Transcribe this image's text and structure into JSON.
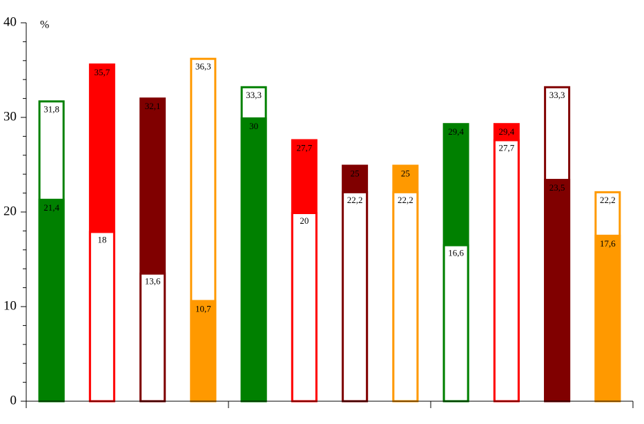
{
  "chart_data": {
    "type": "overlap-bar",
    "y_unit_label": "%",
    "ylim": [
      0,
      40
    ],
    "yticks": [
      0,
      10,
      20,
      30,
      40
    ],
    "yminorticks": [
      2,
      4,
      6,
      8,
      12,
      14,
      16,
      18,
      22,
      24,
      26,
      28,
      32,
      34,
      36,
      38
    ],
    "groups": 3,
    "bars": [
      {
        "color": "#008000",
        "values": [
          21.4,
          31.8
        ],
        "value_labels": [
          "21,4",
          "31,8"
        ],
        "styles": [
          "solid",
          "outline"
        ]
      },
      {
        "color": "#ff0000",
        "values": [
          18,
          35.7
        ],
        "value_labels": [
          "18",
          "35,7"
        ],
        "styles": [
          "outline",
          "solid"
        ]
      },
      {
        "color": "#800000",
        "values": [
          13.6,
          32.1
        ],
        "value_labels": [
          "13,6",
          "32,1"
        ],
        "styles": [
          "outline",
          "solid"
        ]
      },
      {
        "color": "#ff9900",
        "values": [
          10.7,
          36.3
        ],
        "value_labels": [
          "10,7",
          "36,3"
        ],
        "styles": [
          "solid",
          "outline"
        ]
      },
      {
        "color": "#008000",
        "values": [
          30,
          33.3
        ],
        "value_labels": [
          "30",
          "33,3"
        ],
        "styles": [
          "solid",
          "outline"
        ]
      },
      {
        "color": "#ff0000",
        "values": [
          20,
          27.7
        ],
        "value_labels": [
          "20",
          "27,7"
        ],
        "styles": [
          "outline",
          "solid"
        ]
      },
      {
        "color": "#800000",
        "values": [
          22.2,
          25
        ],
        "value_labels": [
          "22,2",
          "25"
        ],
        "styles": [
          "outline",
          "solid"
        ]
      },
      {
        "color": "#ff9900",
        "values": [
          22.2,
          25
        ],
        "value_labels": [
          "22,2",
          "25"
        ],
        "styles": [
          "outline",
          "solid"
        ]
      },
      {
        "color": "#008000",
        "values": [
          16.6,
          29.4
        ],
        "value_labels": [
          "16,6",
          "29,4"
        ],
        "styles": [
          "outline",
          "solid"
        ]
      },
      {
        "color": "#ff0000",
        "values": [
          27.7,
          29.4
        ],
        "value_labels": [
          "27,7",
          "29,4"
        ],
        "styles": [
          "outline",
          "solid"
        ]
      },
      {
        "color": "#800000",
        "values": [
          23.5,
          33.3
        ],
        "value_labels": [
          "23,5",
          "33,3"
        ],
        "styles": [
          "solid",
          "outline"
        ]
      },
      {
        "color": "#ff9900",
        "values": [
          17.6,
          22.2
        ],
        "value_labels": [
          "17,6",
          "22,2"
        ],
        "styles": [
          "solid",
          "outline"
        ]
      }
    ]
  }
}
